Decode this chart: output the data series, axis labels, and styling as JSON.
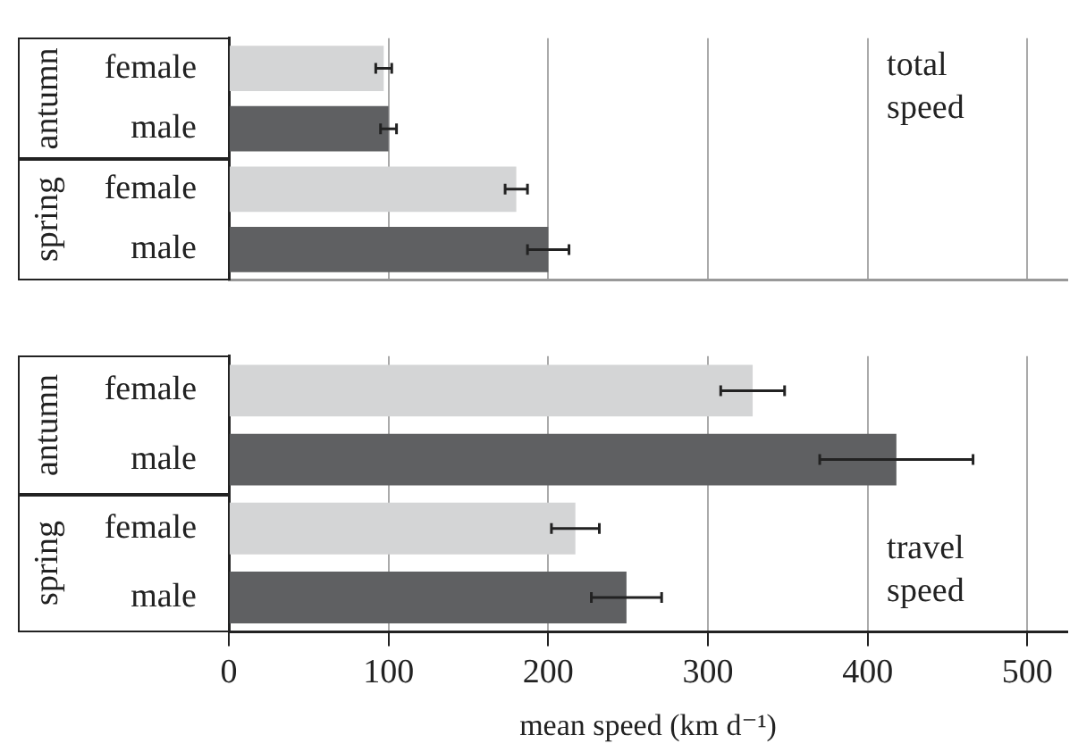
{
  "chart_data": [
    {
      "type": "bar",
      "orientation": "horizontal",
      "categories": [
        "female",
        "male",
        "female",
        "male"
      ],
      "values": [
        97,
        100,
        180,
        200
      ],
      "errors": [
        5,
        5,
        7,
        13
      ],
      "colors": [
        "#d4d5d6",
        "#5f6062",
        "#d4d5d6",
        "#5f6062"
      ],
      "xlim": [
        0,
        525
      ],
      "xticks": [
        0,
        100,
        200,
        300,
        400,
        500
      ],
      "grid": "x",
      "tick_labels": "y",
      "legend": false,
      "annotations": [
        "total speed",
        "antumn",
        "spring"
      ]
    },
    {
      "type": "bar",
      "orientation": "horizontal",
      "categories": [
        "female",
        "male",
        "female",
        "male"
      ],
      "values": [
        328,
        418,
        217,
        249
      ],
      "errors": [
        20,
        48,
        15,
        22
      ],
      "colors": [
        "#d4d5d6",
        "#5f6062",
        "#d4d5d6",
        "#5f6062"
      ],
      "xlim": [
        0,
        525
      ],
      "xticks": [
        0,
        100,
        200,
        300,
        400,
        500
      ],
      "grid": "x",
      "xlabel": "mean speed (km d⁻¹)",
      "legend": false,
      "annotations": [
        "travel speed",
        "antumn",
        "spring"
      ]
    }
  ]
}
